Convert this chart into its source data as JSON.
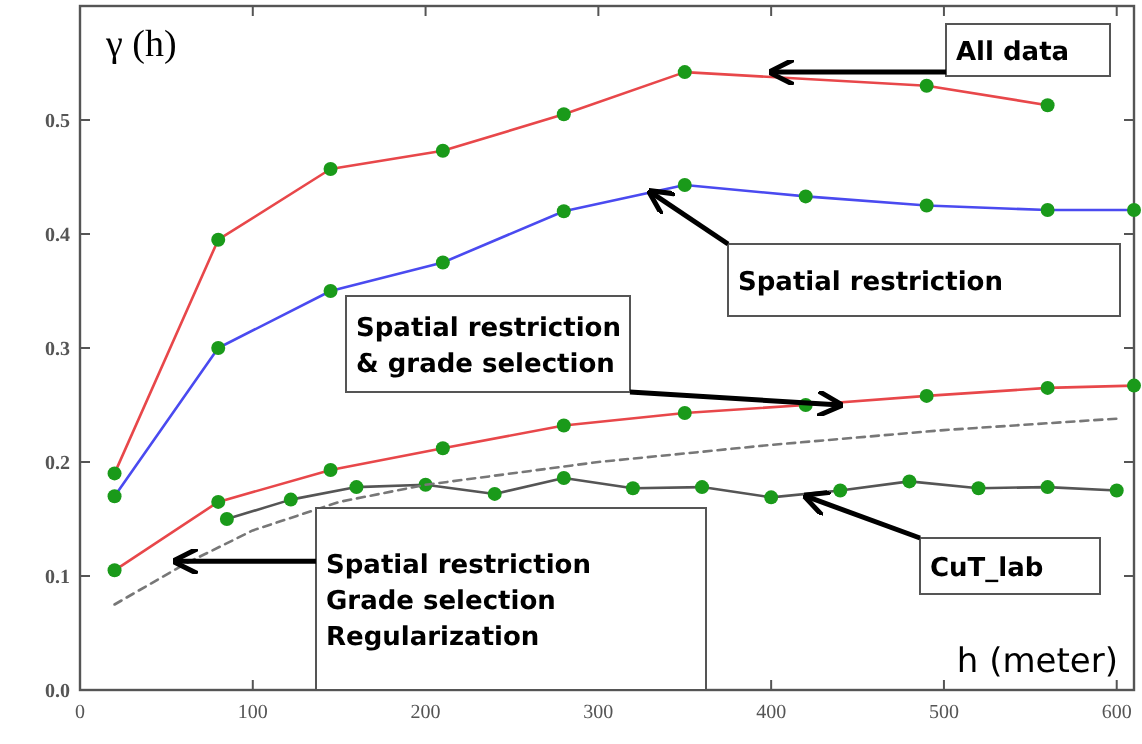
{
  "chart_data": {
    "type": "line",
    "xlabel": "h (meter)",
    "ylabel": "γ (h)",
    "xlim": [
      0,
      610
    ],
    "ylim": [
      0,
      0.6
    ],
    "xticks": [
      0,
      100,
      200,
      300,
      400,
      500,
      600
    ],
    "yticks": [
      {
        "value": 0,
        "label": "0.0"
      },
      0.1,
      0.2,
      0.3,
      0.4,
      0.5
    ],
    "grid": false,
    "marker": "circle",
    "line_style": "solid",
    "series": [
      {
        "color": "#e8474a",
        "x": [
          20,
          80,
          145,
          210,
          280,
          350,
          490,
          560
        ],
        "values": [
          0.19,
          0.395,
          0.457,
          0.473,
          0.505,
          0.542,
          0.53,
          0.513
        ]
      },
      {
        "color": "#4a4af0",
        "x": [
          20,
          80,
          145,
          210,
          280,
          350,
          420,
          490,
          560,
          610
        ],
        "values": [
          0.17,
          0.3,
          0.35,
          0.375,
          0.42,
          0.443,
          0.433,
          0.425,
          0.421,
          0.421
        ]
      },
      {
        "color": "#e8474a",
        "x": [
          20,
          80,
          145,
          210,
          280,
          350,
          420,
          490,
          560,
          610
        ],
        "values": [
          0.105,
          0.165,
          0.193,
          0.212,
          0.232,
          0.243,
          0.25,
          0.258,
          0.265,
          0.267
        ]
      },
      {
        "color": "#555555",
        "x": [
          85,
          122,
          160,
          200,
          240,
          280,
          320,
          360,
          400,
          440,
          480,
          520,
          560,
          600
        ],
        "values": [
          0.15,
          0.167,
          0.178,
          0.18,
          0.172,
          0.186,
          0.177,
          0.178,
          0.169,
          0.175,
          0.183,
          0.177,
          0.178,
          0.175
        ]
      },
      {
        "color": "#777777",
        "marker": "none",
        "line_style": "dashed",
        "x": [
          20,
          60,
          100,
          150,
          200,
          300,
          400,
          500,
          600
        ],
        "values": [
          0.075,
          0.11,
          0.14,
          0.165,
          0.18,
          0.2,
          0.215,
          0.228,
          0.238
        ]
      }
    ],
    "annotations": [
      {
        "text": "All data",
        "x": 400,
        "y": 0.542
      },
      {
        "text": "Spatial restriction",
        "x": 330,
        "y": 0.437
      },
      {
        "text": "Spatial restriction\n& grade selection",
        "x": 440,
        "y": 0.25
      },
      {
        "text": "CuT_lab",
        "x": 420,
        "y": 0.17
      },
      {
        "text": "Spatial restriction\nGrade selection\nRegularization",
        "x": 55,
        "y": 0.113
      }
    ]
  }
}
